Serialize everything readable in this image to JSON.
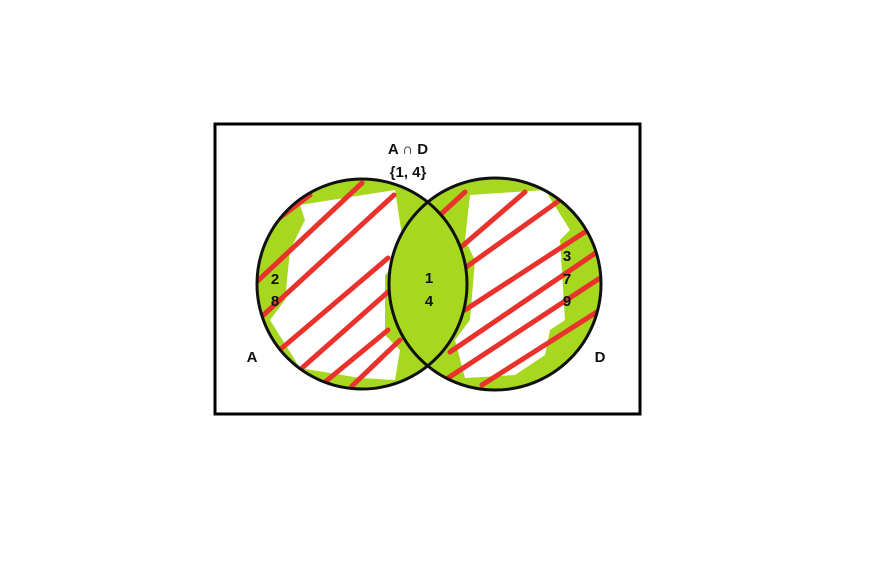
{
  "diagram": {
    "intersection_label": "A ∩ D",
    "intersection_set": "{1, 4}",
    "set_a": {
      "name": "A",
      "elements_outside": [
        "2",
        "8"
      ]
    },
    "set_d": {
      "name": "D",
      "elements_outside": [
        "3",
        "7",
        "9"
      ]
    },
    "intersection_elements": [
      "1",
      "4"
    ]
  },
  "colors": {
    "fill_green": "#a6d81f",
    "hatch_red": "#e8322b",
    "outline": "#111111",
    "frame": "#000000"
  }
}
